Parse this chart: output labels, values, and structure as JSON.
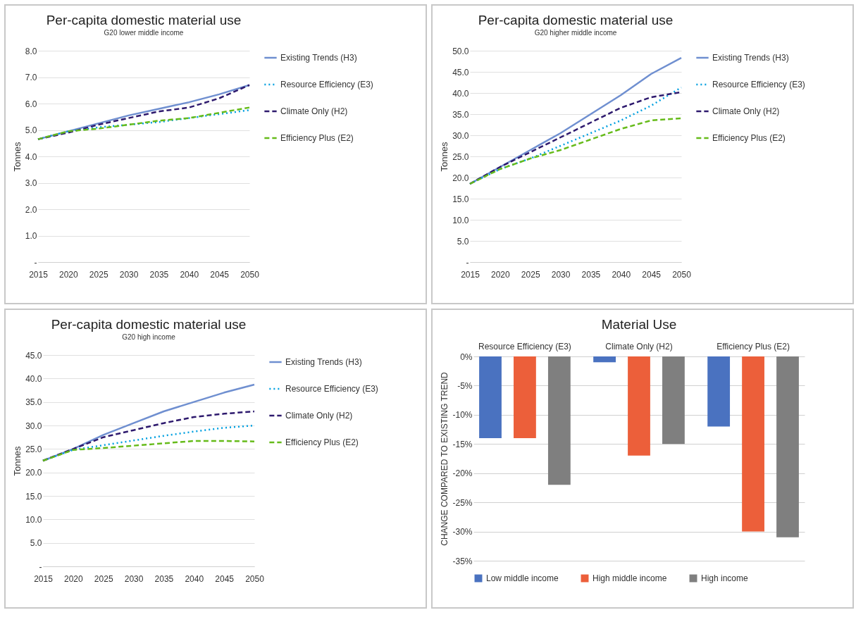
{
  "chart_data": [
    {
      "type": "line",
      "title": "Per-capita domestic material use",
      "subtitle": "G20 lower middle income",
      "ylabel": "Tonnes",
      "x": [
        2015,
        2020,
        2025,
        2030,
        2035,
        2040,
        2045,
        2050
      ],
      "xlim": [
        2015,
        2050
      ],
      "xticks": [
        2015,
        2020,
        2025,
        2030,
        2035,
        2040,
        2045,
        2050
      ],
      "ylim": [
        0,
        8
      ],
      "yticks": [
        {
          "value": 0,
          "label": "-"
        },
        {
          "value": 1,
          "label": "1.0"
        },
        {
          "value": 2,
          "label": "2.0"
        },
        {
          "value": 3,
          "label": "3.0"
        },
        {
          "value": 4,
          "label": "4.0"
        },
        {
          "value": 5,
          "label": "5.0"
        },
        {
          "value": 6,
          "label": "6.0"
        },
        {
          "value": 7,
          "label": "7.0"
        },
        {
          "value": 8,
          "label": "8.0"
        }
      ],
      "grid": "y",
      "legend": "right",
      "series": [
        {
          "name": "Existing Trends (H3)",
          "color": "#6f8fd0",
          "line_style": "solid",
          "values": [
            4.65,
            4.95,
            5.25,
            5.55,
            5.8,
            6.05,
            6.35,
            6.7
          ]
        },
        {
          "name": "Resource Efficiency (E3)",
          "color": "#00a0e0",
          "line_style": "dotted",
          "values": [
            4.65,
            4.95,
            5.1,
            5.2,
            5.3,
            5.45,
            5.6,
            5.75
          ]
        },
        {
          "name": "Climate Only (H2)",
          "color": "#2e1a6e",
          "line_style": "dashed",
          "values": [
            4.65,
            4.9,
            5.2,
            5.45,
            5.7,
            5.85,
            6.2,
            6.7
          ]
        },
        {
          "name": "Efficiency Plus (E2)",
          "color": "#66bb1a",
          "line_style": "dashed",
          "values": [
            4.65,
            4.95,
            5.05,
            5.2,
            5.35,
            5.45,
            5.65,
            5.85
          ]
        }
      ]
    },
    {
      "type": "line",
      "title": "Per-capita domestic material use",
      "subtitle": "G20 higher middle income",
      "ylabel": "Tonnes",
      "x": [
        2015,
        2020,
        2025,
        2030,
        2035,
        2040,
        2045,
        2050
      ],
      "xlim": [
        2015,
        2050
      ],
      "xticks": [
        2015,
        2020,
        2025,
        2030,
        2035,
        2040,
        2045,
        2050
      ],
      "ylim": [
        0,
        50
      ],
      "yticks": [
        {
          "value": 0,
          "label": "-"
        },
        {
          "value": 5,
          "label": "5.0"
        },
        {
          "value": 10,
          "label": "10.0"
        },
        {
          "value": 15,
          "label": "15.0"
        },
        {
          "value": 20,
          "label": "20.0"
        },
        {
          "value": 25,
          "label": "25.0"
        },
        {
          "value": 30,
          "label": "30.0"
        },
        {
          "value": 35,
          "label": "35.0"
        },
        {
          "value": 40,
          "label": "40.0"
        },
        {
          "value": 45,
          "label": "45.0"
        },
        {
          "value": 50,
          "label": "50.0"
        }
      ],
      "grid": "y",
      "legend": "right",
      "series": [
        {
          "name": "Existing Trends (H3)",
          "color": "#6f8fd0",
          "line_style": "solid",
          "values": [
            18.5,
            22.5,
            26.5,
            30.5,
            35,
            39.5,
            44.5,
            48.3
          ]
        },
        {
          "name": "Resource Efficiency (E3)",
          "color": "#00a0e0",
          "line_style": "dotted",
          "values": [
            18.5,
            22,
            24.5,
            27.5,
            30.5,
            33.5,
            37,
            41.3
          ]
        },
        {
          "name": "Climate Only (H2)",
          "color": "#2e1a6e",
          "line_style": "dashed",
          "values": [
            18.5,
            22.5,
            26,
            29.5,
            33,
            36.5,
            39,
            40.2
          ]
        },
        {
          "name": "Efficiency Plus (E2)",
          "color": "#66bb1a",
          "line_style": "dashed",
          "values": [
            18.5,
            22,
            24.5,
            26.5,
            29,
            31.5,
            33.5,
            34
          ]
        }
      ]
    },
    {
      "type": "line",
      "title": "Per-capita domestic material use",
      "subtitle": "G20 high income",
      "ylabel": "Tonnes",
      "x": [
        2015,
        2020,
        2025,
        2030,
        2035,
        2040,
        2045,
        2050
      ],
      "xlim": [
        2015,
        2050
      ],
      "xticks": [
        2015,
        2020,
        2025,
        2030,
        2035,
        2040,
        2045,
        2050
      ],
      "ylim": [
        0,
        45
      ],
      "yticks": [
        {
          "value": 0,
          "label": "-"
        },
        {
          "value": 5,
          "label": "5.0"
        },
        {
          "value": 10,
          "label": "10.0"
        },
        {
          "value": 15,
          "label": "15.0"
        },
        {
          "value": 20,
          "label": "20.0"
        },
        {
          "value": 25,
          "label": "25.0"
        },
        {
          "value": 30,
          "label": "30.0"
        },
        {
          "value": 35,
          "label": "35.0"
        },
        {
          "value": 40,
          "label": "40.0"
        },
        {
          "value": 45,
          "label": "45.0"
        }
      ],
      "grid": "y",
      "legend": "right",
      "series": [
        {
          "name": "Existing Trends (H3)",
          "color": "#6f8fd0",
          "line_style": "solid",
          "values": [
            22.5,
            25,
            28,
            30.5,
            33,
            35,
            37,
            38.7
          ]
        },
        {
          "name": "Resource Efficiency (E3)",
          "color": "#00a0e0",
          "line_style": "dotted",
          "values": [
            22.5,
            24.8,
            25.8,
            26.8,
            27.8,
            28.7,
            29.5,
            30
          ]
        },
        {
          "name": "Climate Only (H2)",
          "color": "#2e1a6e",
          "line_style": "dashed",
          "values": [
            22.5,
            25,
            27.5,
            29,
            30.5,
            31.8,
            32.5,
            33
          ]
        },
        {
          "name": "Efficiency Plus (E2)",
          "color": "#66bb1a",
          "line_style": "dashed",
          "values": [
            22.5,
            24.8,
            25.2,
            25.7,
            26.2,
            26.7,
            26.7,
            26.6
          ]
        }
      ]
    },
    {
      "type": "bar",
      "title": "Material Use",
      "ylabel": "CHANGE COMPARED TO EXISTING TREND",
      "categories": [
        "Resource Efficiency (E3)",
        "Climate Only (H2)",
        "Efficiency Plus (E2)"
      ],
      "ylim": [
        -35,
        0
      ],
      "yticks": [
        {
          "value": 0,
          "label": "0%"
        },
        {
          "value": -5,
          "label": "-5%"
        },
        {
          "value": -10,
          "label": "-10%"
        },
        {
          "value": -15,
          "label": "-15%"
        },
        {
          "value": -20,
          "label": "-20%"
        },
        {
          "value": -25,
          "label": "-25%"
        },
        {
          "value": -30,
          "label": "-30%"
        },
        {
          "value": -35,
          "label": "-35%"
        }
      ],
      "grid": "y",
      "legend": "bottom",
      "series": [
        {
          "name": "Low middle income",
          "color": "#4a72c0",
          "values": [
            -14,
            -1,
            -12
          ]
        },
        {
          "name": "High middle income",
          "color": "#ec5f3a",
          "values": [
            -14,
            -17,
            -30
          ]
        },
        {
          "name": "High income",
          "color": "#7f7f7f",
          "values": [
            -22,
            -15,
            -31
          ]
        }
      ]
    }
  ]
}
